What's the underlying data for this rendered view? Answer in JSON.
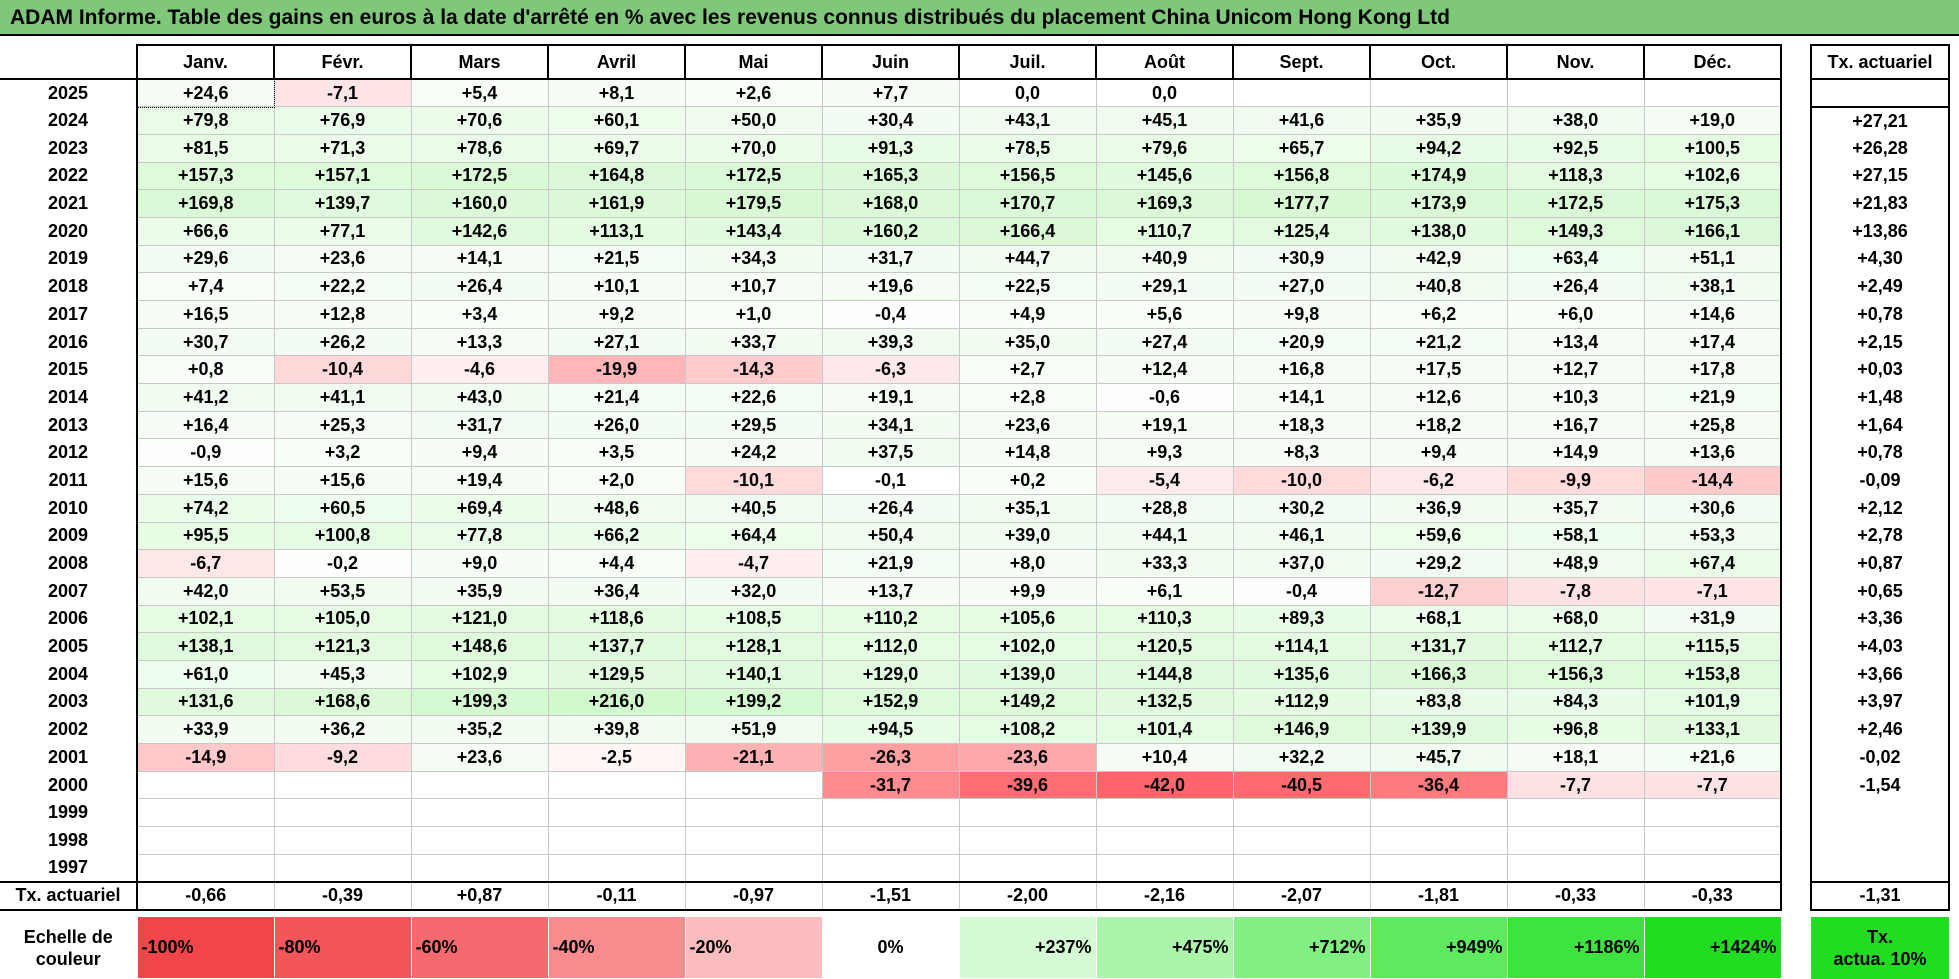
{
  "title": "ADAM Informe. Table des gains en euros à la date d'arrêté en % avec les revenus connus distribués du placement China Unicom Hong Kong Ltd",
  "months": [
    "Janv.",
    "Févr.",
    "Mars",
    "Avril",
    "Mai",
    "Juin",
    "Juil.",
    "Août",
    "Sept.",
    "Oct.",
    "Nov.",
    "Déc."
  ],
  "tx_header": "Tx. actuariel",
  "rows": [
    {
      "year": "2025",
      "values": [
        "+24,6",
        "-7,1",
        "+5,4",
        "+8,1",
        "+2,6",
        "+7,7",
        "0,0",
        "0,0",
        "",
        "",
        "",
        ""
      ],
      "tx": ""
    },
    {
      "year": "2024",
      "values": [
        "+79,8",
        "+76,9",
        "+70,6",
        "+60,1",
        "+50,0",
        "+30,4",
        "+43,1",
        "+45,1",
        "+41,6",
        "+35,9",
        "+38,0",
        "+19,0"
      ],
      "tx": "+27,21"
    },
    {
      "year": "2023",
      "values": [
        "+81,5",
        "+71,3",
        "+78,6",
        "+69,7",
        "+70,0",
        "+91,3",
        "+78,5",
        "+79,6",
        "+65,7",
        "+94,2",
        "+92,5",
        "+100,5"
      ],
      "tx": "+26,28"
    },
    {
      "year": "2022",
      "values": [
        "+157,3",
        "+157,1",
        "+172,5",
        "+164,8",
        "+172,5",
        "+165,3",
        "+156,5",
        "+145,6",
        "+156,8",
        "+174,9",
        "+118,3",
        "+102,6"
      ],
      "tx": "+27,15"
    },
    {
      "year": "2021",
      "values": [
        "+169,8",
        "+139,7",
        "+160,0",
        "+161,9",
        "+179,5",
        "+168,0",
        "+170,7",
        "+169,3",
        "+177,7",
        "+173,9",
        "+172,5",
        "+175,3"
      ],
      "tx": "+21,83"
    },
    {
      "year": "2020",
      "values": [
        "+66,6",
        "+77,1",
        "+142,6",
        "+113,1",
        "+143,4",
        "+160,2",
        "+166,4",
        "+110,7",
        "+125,4",
        "+138,0",
        "+149,3",
        "+166,1"
      ],
      "tx": "+13,86"
    },
    {
      "year": "2019",
      "values": [
        "+29,6",
        "+23,6",
        "+14,1",
        "+21,5",
        "+34,3",
        "+31,7",
        "+44,7",
        "+40,9",
        "+30,9",
        "+42,9",
        "+63,4",
        "+51,1"
      ],
      "tx": "+4,30"
    },
    {
      "year": "2018",
      "values": [
        "+7,4",
        "+22,2",
        "+26,4",
        "+10,1",
        "+10,7",
        "+19,6",
        "+22,5",
        "+29,1",
        "+27,0",
        "+40,8",
        "+26,4",
        "+38,1"
      ],
      "tx": "+2,49"
    },
    {
      "year": "2017",
      "values": [
        "+16,5",
        "+12,8",
        "+3,4",
        "+9,2",
        "+1,0",
        "-0,4",
        "+4,9",
        "+5,6",
        "+9,8",
        "+6,2",
        "+6,0",
        "+14,6"
      ],
      "tx": "+0,78"
    },
    {
      "year": "2016",
      "values": [
        "+30,7",
        "+26,2",
        "+13,3",
        "+27,1",
        "+33,7",
        "+39,3",
        "+35,0",
        "+27,4",
        "+20,9",
        "+21,2",
        "+13,4",
        "+17,4"
      ],
      "tx": "+2,15"
    },
    {
      "year": "2015",
      "values": [
        "+0,8",
        "-10,4",
        "-4,6",
        "-19,9",
        "-14,3",
        "-6,3",
        "+2,7",
        "+12,4",
        "+16,8",
        "+17,5",
        "+12,7",
        "+17,8"
      ],
      "tx": "+0,03"
    },
    {
      "year": "2014",
      "values": [
        "+41,2",
        "+41,1",
        "+43,0",
        "+21,4",
        "+22,6",
        "+19,1",
        "+2,8",
        "-0,6",
        "+14,1",
        "+12,6",
        "+10,3",
        "+21,9"
      ],
      "tx": "+1,48"
    },
    {
      "year": "2013",
      "values": [
        "+16,4",
        "+25,3",
        "+31,7",
        "+26,0",
        "+29,5",
        "+34,1",
        "+23,6",
        "+19,1",
        "+18,3",
        "+18,2",
        "+16,7",
        "+25,8"
      ],
      "tx": "+1,64"
    },
    {
      "year": "2012",
      "values": [
        "-0,9",
        "+3,2",
        "+9,4",
        "+3,5",
        "+24,2",
        "+37,5",
        "+14,8",
        "+9,3",
        "+8,3",
        "+9,4",
        "+14,9",
        "+13,6"
      ],
      "tx": "+0,78"
    },
    {
      "year": "2011",
      "values": [
        "+15,6",
        "+15,6",
        "+19,4",
        "+2,0",
        "-10,1",
        "-0,1",
        "+0,2",
        "-5,4",
        "-10,0",
        "-6,2",
        "-9,9",
        "-14,4"
      ],
      "tx": "-0,09"
    },
    {
      "year": "2010",
      "values": [
        "+74,2",
        "+60,5",
        "+69,4",
        "+48,6",
        "+40,5",
        "+26,4",
        "+35,1",
        "+28,8",
        "+30,2",
        "+36,9",
        "+35,7",
        "+30,6"
      ],
      "tx": "+2,12"
    },
    {
      "year": "2009",
      "values": [
        "+95,5",
        "+100,8",
        "+77,8",
        "+66,2",
        "+64,4",
        "+50,4",
        "+39,0",
        "+44,1",
        "+46,1",
        "+59,6",
        "+58,1",
        "+53,3"
      ],
      "tx": "+2,78"
    },
    {
      "year": "2008",
      "values": [
        "-6,7",
        "-0,2",
        "+9,0",
        "+4,4",
        "-4,7",
        "+21,9",
        "+8,0",
        "+33,3",
        "+37,0",
        "+29,2",
        "+48,9",
        "+67,4"
      ],
      "tx": "+0,87"
    },
    {
      "year": "2007",
      "values": [
        "+42,0",
        "+53,5",
        "+35,9",
        "+36,4",
        "+32,0",
        "+13,7",
        "+9,9",
        "+6,1",
        "-0,4",
        "-12,7",
        "-7,8",
        "-7,1"
      ],
      "tx": "+0,65"
    },
    {
      "year": "2006",
      "values": [
        "+102,1",
        "+105,0",
        "+121,0",
        "+118,6",
        "+108,5",
        "+110,2",
        "+105,6",
        "+110,3",
        "+89,3",
        "+68,1",
        "+68,0",
        "+31,9"
      ],
      "tx": "+3,36"
    },
    {
      "year": "2005",
      "values": [
        "+138,1",
        "+121,3",
        "+148,6",
        "+137,7",
        "+128,1",
        "+112,0",
        "+102,0",
        "+120,5",
        "+114,1",
        "+131,7",
        "+112,7",
        "+115,5"
      ],
      "tx": "+4,03"
    },
    {
      "year": "2004",
      "values": [
        "+61,0",
        "+45,3",
        "+102,9",
        "+129,5",
        "+140,1",
        "+129,0",
        "+139,0",
        "+144,8",
        "+135,6",
        "+166,3",
        "+156,3",
        "+153,8"
      ],
      "tx": "+3,66"
    },
    {
      "year": "2003",
      "values": [
        "+131,6",
        "+168,6",
        "+199,3",
        "+216,0",
        "+199,2",
        "+152,9",
        "+149,2",
        "+132,5",
        "+112,9",
        "+83,8",
        "+84,3",
        "+101,9"
      ],
      "tx": "+3,97"
    },
    {
      "year": "2002",
      "values": [
        "+33,9",
        "+36,2",
        "+35,2",
        "+39,8",
        "+51,9",
        "+94,5",
        "+108,2",
        "+101,4",
        "+146,9",
        "+139,9",
        "+96,8",
        "+133,1"
      ],
      "tx": "+2,46"
    },
    {
      "year": "2001",
      "values": [
        "-14,9",
        "-9,2",
        "+23,6",
        "-2,5",
        "-21,1",
        "-26,3",
        "-23,6",
        "+10,4",
        "+32,2",
        "+45,7",
        "+18,1",
        "+21,6"
      ],
      "tx": "-0,02"
    },
    {
      "year": "2000",
      "values": [
        "",
        "",
        "",
        "",
        "",
        "-31,7",
        "-39,6",
        "-42,0",
        "-40,5",
        "-36,4",
        "-7,7",
        "-7,7"
      ],
      "tx": "-1,54"
    },
    {
      "year": "1999",
      "values": [
        "",
        "",
        "",
        "",
        "",
        "",
        "",
        "",
        "",
        "",
        "",
        ""
      ],
      "tx": ""
    },
    {
      "year": "1998",
      "values": [
        "",
        "",
        "",
        "",
        "",
        "",
        "",
        "",
        "",
        "",
        "",
        ""
      ],
      "tx": ""
    },
    {
      "year": "1997",
      "values": [
        "",
        "",
        "",
        "",
        "",
        "",
        "",
        "",
        "",
        "",
        "",
        ""
      ],
      "tx": ""
    }
  ],
  "footer": {
    "label": "Tx. actuariel",
    "values": [
      "-0,66",
      "-0,39",
      "+0,87",
      "-0,11",
      "-0,97",
      "-1,51",
      "-2,00",
      "-2,16",
      "-2,07",
      "-1,81",
      "-0,33",
      "-0,33"
    ],
    "tx": "-1,31"
  },
  "scale": {
    "label_line1": "Echelle de",
    "label_line2": "couleur",
    "steps": [
      {
        "label": "-100%",
        "color": "#f0454a"
      },
      {
        "label": "-80%",
        "color": "#f2565b"
      },
      {
        "label": "-60%",
        "color": "#f46a6e"
      },
      {
        "label": "-40%",
        "color": "#f78b8e"
      },
      {
        "label": "-20%",
        "color": "#fbbcbe"
      },
      {
        "label": "0%",
        "color": "#ffffff"
      },
      {
        "label": "+237%",
        "color": "#d4fbd4"
      },
      {
        "label": "+475%",
        "color": "#aaf5aa"
      },
      {
        "label": "+712%",
        "color": "#82ef82"
      },
      {
        "label": "+949%",
        "color": "#5eea5e"
      },
      {
        "label": "+1186%",
        "color": "#3fe33f"
      },
      {
        "label": "+1424%",
        "color": "#22dc22"
      }
    ],
    "tx_line1": "Tx.",
    "tx_line2": "actua. 10%",
    "tx_color": "#22dc22"
  }
}
